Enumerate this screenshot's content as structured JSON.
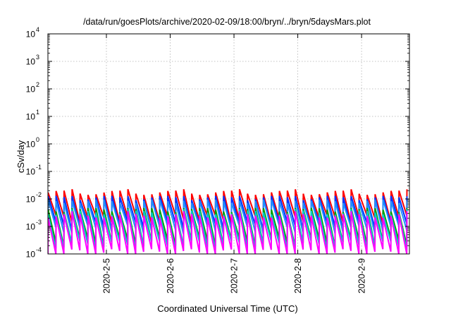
{
  "chart_data": {
    "type": "line",
    "title": "/data/run/goesPlots/archive/2020-02-09/18:00/bryn/../bryn/5daysMars.plot",
    "xlabel": "Coordinated Universal Time (UTC)",
    "ylabel": "cSv/day",
    "y_scale": "log",
    "ylim": [
      0.0001,
      10000
    ],
    "y_ticks": [
      {
        "exp": "-4",
        "value": 0.0001
      },
      {
        "exp": "-3",
        "value": 0.001
      },
      {
        "exp": "-2",
        "value": 0.01
      },
      {
        "exp": "-1",
        "value": 0.1
      },
      {
        "exp": "0",
        "value": 1
      },
      {
        "exp": "1",
        "value": 10
      },
      {
        "exp": "2",
        "value": 100
      },
      {
        "exp": "3",
        "value": 1000
      },
      {
        "exp": "4",
        "value": 10000
      }
    ],
    "y_tick_base": "10",
    "xlim": [
      "2020-02-04T02:00",
      "2020-02-09T18:00"
    ],
    "x_ticks": [
      "2020-2-5",
      "2020-2-6",
      "2020-2-7",
      "2020-2-8",
      "2020-2-9"
    ],
    "x_tick_dates": [
      "2020-02-05T00:00",
      "2020-02-06T00:00",
      "2020-02-07T00:00",
      "2020-02-08T00:00",
      "2020-02-09T00:00"
    ],
    "grid": true,
    "legend": "none",
    "cycle_hours": 3,
    "series": [
      {
        "color": "#ff0000",
        "peak": 0.017,
        "trough": 0.0019
      },
      {
        "color": "#0033ff",
        "peak": 0.011,
        "trough": 0.0011
      },
      {
        "color": "#2090ff",
        "peak": 0.008,
        "trough": 0.0008
      },
      {
        "color": "#00a000",
        "peak": 0.004,
        "trough": 0.00028
      },
      {
        "color": "#00c8c8",
        "peak": 0.0032,
        "trough": 0.00022
      },
      {
        "color": "#ff00ff",
        "peak": 0.0025,
        "trough": 0.00011
      }
    ]
  }
}
